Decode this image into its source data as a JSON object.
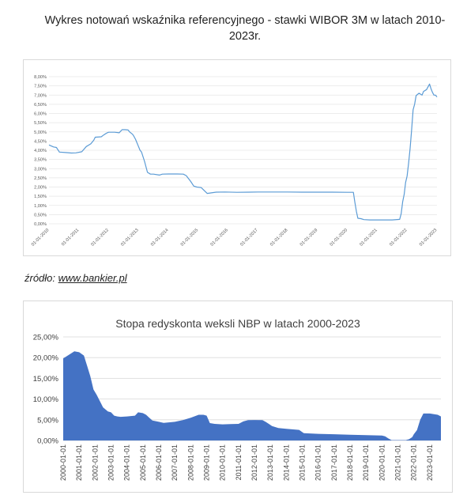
{
  "document": {
    "title": "Wykres notowań wskaźnika referencyjnego - stawki WIBOR 3M w latach 2010-2023r.",
    "source_label": "źródło:",
    "source_link": "www.bankier.pl"
  },
  "chart_data": [
    {
      "type": "line",
      "title": "",
      "xlabel": "",
      "ylabel": "",
      "ylim": [
        0,
        8
      ],
      "yticks": [
        "0,00%",
        "0,50%",
        "1,00%",
        "1,50%",
        "2,00%",
        "2,50%",
        "3,00%",
        "3,50%",
        "4,00%",
        "4,50%",
        "5,00%",
        "5,50%",
        "6,00%",
        "6,50%",
        "7,00%",
        "7,50%",
        "8,00%"
      ],
      "xlim": [
        2010,
        2023
      ],
      "xticks": [
        "01-01-2010",
        "01-01-2011",
        "01-01-2012",
        "01-01-2013",
        "01-01-2014",
        "01-01-2015",
        "01-01-2016",
        "01-01-2017",
        "01-01-2018",
        "01-01-2019",
        "01-01-2020",
        "01-01-2021",
        "01-01-2022",
        "01-01-2023"
      ],
      "grid": true,
      "line_color": "#5b9bd5",
      "series": [
        {
          "name": "",
          "x": [
            2010.0,
            2010.15,
            2010.25,
            2010.35,
            2010.6,
            2010.75,
            2010.9,
            2011.1,
            2011.25,
            2011.4,
            2011.5,
            2011.55,
            2011.75,
            2011.85,
            2011.95,
            2012.0,
            2012.2,
            2012.35,
            2012.45,
            2012.55,
            2012.65,
            2012.7,
            2012.8,
            2012.85,
            2012.9,
            2013.0,
            2013.05,
            2013.1,
            2013.2,
            2013.3,
            2013.4,
            2013.5,
            2013.7,
            2013.8,
            2014.0,
            2014.3,
            2014.5,
            2014.6,
            2014.75,
            2014.85,
            2014.95,
            2015.1,
            2015.3,
            2015.6,
            2015.9,
            2016.3,
            2016.7,
            2017.0,
            2017.5,
            2018.0,
            2018.5,
            2019.0,
            2019.5,
            2020.0,
            2020.2,
            2020.25,
            2020.3,
            2020.35,
            2020.45,
            2020.55,
            2020.75,
            2021.0,
            2021.5,
            2021.75,
            2021.8,
            2021.85,
            2021.9,
            2021.95,
            2022.0,
            2022.05,
            2022.1,
            2022.15,
            2022.2,
            2022.25,
            2022.3,
            2022.4,
            2022.5,
            2022.55,
            2022.65,
            2022.75,
            2022.8,
            2022.85,
            2022.9,
            2022.95,
            2023.0
          ],
          "values": [
            4.29,
            4.18,
            4.15,
            3.9,
            3.87,
            3.85,
            3.86,
            3.92,
            4.2,
            4.35,
            4.55,
            4.71,
            4.73,
            4.85,
            4.95,
            4.98,
            4.98,
            4.95,
            5.12,
            5.12,
            5.1,
            5.0,
            4.87,
            4.75,
            4.6,
            4.2,
            4.0,
            3.9,
            3.4,
            2.8,
            2.7,
            2.7,
            2.65,
            2.7,
            2.71,
            2.71,
            2.7,
            2.62,
            2.3,
            2.05,
            2.0,
            1.97,
            1.65,
            1.72,
            1.73,
            1.71,
            1.72,
            1.73,
            1.73,
            1.73,
            1.72,
            1.72,
            1.72,
            1.71,
            1.71,
            1.17,
            0.68,
            0.3,
            0.28,
            0.23,
            0.21,
            0.21,
            0.21,
            0.24,
            0.55,
            1.2,
            1.6,
            2.25,
            2.6,
            3.3,
            4.1,
            5.1,
            6.2,
            6.5,
            6.97,
            7.1,
            7.0,
            7.2,
            7.3,
            7.6,
            7.35,
            7.15,
            7.0,
            7.0,
            6.9
          ]
        }
      ]
    },
    {
      "type": "area",
      "title": "Stopa redyskonta weksli NBP w latach 2000-2023",
      "xlabel": "",
      "ylabel": "",
      "ylim": [
        0,
        25
      ],
      "yticks": [
        "0,00%",
        "5,00%",
        "10,00%",
        "15,00%",
        "20,00%",
        "25,00%"
      ],
      "xlim": [
        2000,
        2023.7
      ],
      "xticks": [
        "2000-01-01",
        "2001-01-01",
        "2002-01-01",
        "2003-01-01",
        "2004-01-01",
        "2005-01-01",
        "2006-01-01",
        "2007-01-01",
        "2008-01-01",
        "2009-01-01",
        "2010-01-01",
        "2011-01-01",
        "2012-01-01",
        "2013-01-01",
        "2014-01-01",
        "2015-01-01",
        "2016-01-01",
        "2017-01-01",
        "2018-01-01",
        "2019-01-01",
        "2020-01-01",
        "2021-01-01",
        "2022-01-01",
        "2023-01-01"
      ],
      "grid": true,
      "fill_color": "#4472c4",
      "series": [
        {
          "name": "",
          "x": [
            2000.0,
            2000.7,
            2001.0,
            2001.3,
            2001.5,
            2001.7,
            2001.9,
            2002.1,
            2002.3,
            2002.5,
            2002.8,
            2003.0,
            2003.2,
            2003.4,
            2003.6,
            2003.8,
            2004.0,
            2004.5,
            2004.7,
            2005.0,
            2005.2,
            2005.4,
            2005.6,
            2006.0,
            2006.3,
            2007.0,
            2007.5,
            2008.0,
            2008.5,
            2008.8,
            2009.0,
            2009.2,
            2009.5,
            2010.0,
            2010.5,
            2011.0,
            2011.3,
            2011.6,
            2012.0,
            2012.5,
            2012.7,
            2012.9,
            2013.1,
            2013.5,
            2014.0,
            2014.8,
            2015.1,
            2016.0,
            2017.0,
            2018.0,
            2019.0,
            2020.0,
            2020.2,
            2020.4,
            2020.6,
            2021.5,
            2021.7,
            2021.9,
            2022.0,
            2022.2,
            2022.4,
            2022.6,
            2023.0,
            2023.5,
            2023.7
          ],
          "values": [
            19.8,
            21.5,
            21.3,
            20.5,
            18.0,
            15.5,
            12.3,
            11.0,
            9.5,
            8.0,
            7.0,
            6.8,
            6.0,
            5.8,
            5.7,
            5.75,
            5.8,
            6.0,
            6.8,
            6.6,
            6.2,
            5.5,
            4.8,
            4.5,
            4.25,
            4.5,
            4.9,
            5.5,
            6.2,
            6.2,
            6.0,
            4.2,
            4.0,
            3.9,
            3.95,
            4.0,
            4.6,
            4.9,
            4.95,
            4.9,
            4.5,
            4.0,
            3.5,
            3.0,
            2.8,
            2.55,
            1.75,
            1.6,
            1.5,
            1.4,
            1.3,
            1.2,
            1.0,
            0.5,
            0.1,
            0.1,
            0.3,
            0.8,
            1.5,
            2.5,
            5.0,
            6.5,
            6.5,
            6.2,
            5.8
          ]
        }
      ]
    }
  ]
}
